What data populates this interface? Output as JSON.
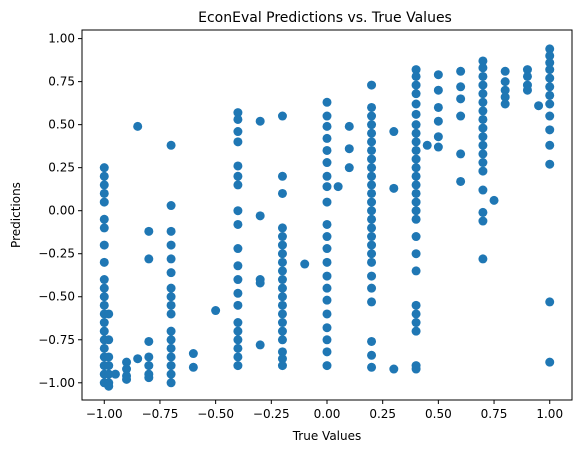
{
  "chart_data": {
    "type": "scatter",
    "title": "EconEval Predictions vs. True Values",
    "xlabel": "True Values",
    "ylabel": "Predictions",
    "xlim": [
      -1.1,
      1.1
    ],
    "ylim": [
      -1.1,
      1.05
    ],
    "xticks": [
      -1.0,
      -0.75,
      -0.5,
      -0.25,
      0.0,
      0.25,
      0.5,
      0.75,
      1.0
    ],
    "xtick_labels": [
      "−1.00",
      "−0.75",
      "−0.50",
      "−0.25",
      "0.00",
      "0.25",
      "0.50",
      "0.75",
      "1.00"
    ],
    "yticks": [
      -1.0,
      -0.75,
      -0.5,
      -0.25,
      0.0,
      0.25,
      0.5,
      0.75,
      1.0
    ],
    "ytick_labels": [
      "−1.00",
      "−0.75",
      "−0.50",
      "−0.25",
      "0.00",
      "0.25",
      "0.50",
      "0.75",
      "1.00"
    ],
    "grid": false,
    "marker_color": "#1f77b4",
    "points": [
      [
        -1.0,
        0.25
      ],
      [
        -1.0,
        0.2
      ],
      [
        -1.0,
        0.15
      ],
      [
        -1.0,
        0.1
      ],
      [
        -1.0,
        0.05
      ],
      [
        -1.0,
        -0.05
      ],
      [
        -1.0,
        -0.1
      ],
      [
        -1.0,
        -0.2
      ],
      [
        -1.0,
        -0.3
      ],
      [
        -1.0,
        -0.4
      ],
      [
        -1.0,
        -0.45
      ],
      [
        -1.0,
        -0.5
      ],
      [
        -1.0,
        -0.55
      ],
      [
        -1.0,
        -0.6
      ],
      [
        -1.0,
        -0.65
      ],
      [
        -1.0,
        -0.7
      ],
      [
        -1.0,
        -0.75
      ],
      [
        -1.0,
        -0.8
      ],
      [
        -1.0,
        -0.85
      ],
      [
        -1.0,
        -0.9
      ],
      [
        -1.0,
        -0.95
      ],
      [
        -1.0,
        -1.0
      ],
      [
        -0.98,
        -0.6
      ],
      [
        -0.98,
        -0.75
      ],
      [
        -0.98,
        -0.85
      ],
      [
        -0.98,
        -0.9
      ],
      [
        -0.98,
        -0.95
      ],
      [
        -0.98,
        -1.0
      ],
      [
        -0.98,
        -1.02
      ],
      [
        -0.95,
        -0.95
      ],
      [
        -0.9,
        -0.88
      ],
      [
        -0.9,
        -0.92
      ],
      [
        -0.9,
        -0.96
      ],
      [
        -0.9,
        -0.98
      ],
      [
        -0.85,
        0.49
      ],
      [
        -0.85,
        -0.86
      ],
      [
        -0.8,
        -0.12
      ],
      [
        -0.8,
        -0.28
      ],
      [
        -0.8,
        -0.76
      ],
      [
        -0.8,
        -0.85
      ],
      [
        -0.8,
        -0.9
      ],
      [
        -0.8,
        -0.95
      ],
      [
        -0.8,
        -0.97
      ],
      [
        -0.7,
        0.38
      ],
      [
        -0.7,
        0.03
      ],
      [
        -0.7,
        -0.12
      ],
      [
        -0.7,
        -0.2
      ],
      [
        -0.7,
        -0.28
      ],
      [
        -0.7,
        -0.36
      ],
      [
        -0.7,
        -0.45
      ],
      [
        -0.7,
        -0.5
      ],
      [
        -0.7,
        -0.55
      ],
      [
        -0.7,
        -0.6
      ],
      [
        -0.7,
        -0.7
      ],
      [
        -0.7,
        -0.75
      ],
      [
        -0.7,
        -0.8
      ],
      [
        -0.7,
        -0.85
      ],
      [
        -0.7,
        -0.9
      ],
      [
        -0.7,
        -0.95
      ],
      [
        -0.7,
        -1.0
      ],
      [
        -0.6,
        -0.83
      ],
      [
        -0.6,
        -0.91
      ],
      [
        -0.5,
        -0.58
      ],
      [
        -0.4,
        0.57
      ],
      [
        -0.4,
        0.53
      ],
      [
        -0.4,
        0.46
      ],
      [
        -0.4,
        0.4
      ],
      [
        -0.4,
        0.26
      ],
      [
        -0.4,
        0.2
      ],
      [
        -0.4,
        0.15
      ],
      [
        -0.4,
        0.0
      ],
      [
        -0.4,
        -0.08
      ],
      [
        -0.4,
        -0.22
      ],
      [
        -0.4,
        -0.32
      ],
      [
        -0.4,
        -0.4
      ],
      [
        -0.4,
        -0.48
      ],
      [
        -0.4,
        -0.55
      ],
      [
        -0.4,
        -0.65
      ],
      [
        -0.4,
        -0.7
      ],
      [
        -0.4,
        -0.75
      ],
      [
        -0.4,
        -0.8
      ],
      [
        -0.4,
        -0.85
      ],
      [
        -0.4,
        -0.9
      ],
      [
        -0.3,
        0.52
      ],
      [
        -0.3,
        -0.03
      ],
      [
        -0.3,
        -0.4
      ],
      [
        -0.3,
        -0.42
      ],
      [
        -0.3,
        -0.78
      ],
      [
        -0.2,
        0.55
      ],
      [
        -0.2,
        0.2
      ],
      [
        -0.2,
        0.1
      ],
      [
        -0.2,
        -0.1
      ],
      [
        -0.2,
        -0.15
      ],
      [
        -0.2,
        -0.2
      ],
      [
        -0.2,
        -0.25
      ],
      [
        -0.2,
        -0.3
      ],
      [
        -0.2,
        -0.35
      ],
      [
        -0.2,
        -0.4
      ],
      [
        -0.2,
        -0.45
      ],
      [
        -0.2,
        -0.5
      ],
      [
        -0.2,
        -0.55
      ],
      [
        -0.2,
        -0.6
      ],
      [
        -0.2,
        -0.65
      ],
      [
        -0.2,
        -0.7
      ],
      [
        -0.2,
        -0.75
      ],
      [
        -0.2,
        -0.82
      ],
      [
        -0.2,
        -0.86
      ],
      [
        -0.2,
        -0.9
      ],
      [
        -0.1,
        -0.31
      ],
      [
        0.0,
        0.63
      ],
      [
        0.0,
        0.55
      ],
      [
        0.0,
        0.49
      ],
      [
        0.0,
        0.42
      ],
      [
        0.0,
        0.35
      ],
      [
        0.0,
        0.28
      ],
      [
        0.0,
        0.2
      ],
      [
        0.0,
        0.14
      ],
      [
        0.0,
        0.05
      ],
      [
        0.0,
        -0.08
      ],
      [
        0.0,
        -0.15
      ],
      [
        0.0,
        -0.22
      ],
      [
        0.0,
        -0.3
      ],
      [
        0.0,
        -0.38
      ],
      [
        0.0,
        -0.45
      ],
      [
        0.0,
        -0.52
      ],
      [
        0.0,
        -0.6
      ],
      [
        0.0,
        -0.68
      ],
      [
        0.0,
        -0.75
      ],
      [
        0.0,
        -0.82
      ],
      [
        0.0,
        -0.9
      ],
      [
        0.05,
        0.14
      ],
      [
        0.1,
        0.49
      ],
      [
        0.1,
        0.36
      ],
      [
        0.1,
        0.25
      ],
      [
        0.2,
        0.73
      ],
      [
        0.2,
        0.6
      ],
      [
        0.2,
        0.55
      ],
      [
        0.2,
        0.5
      ],
      [
        0.2,
        0.45
      ],
      [
        0.2,
        0.4
      ],
      [
        0.2,
        0.35
      ],
      [
        0.2,
        0.3
      ],
      [
        0.2,
        0.25
      ],
      [
        0.2,
        0.2
      ],
      [
        0.2,
        0.15
      ],
      [
        0.2,
        0.1
      ],
      [
        0.2,
        0.05
      ],
      [
        0.2,
        0.0
      ],
      [
        0.2,
        -0.05
      ],
      [
        0.2,
        -0.1
      ],
      [
        0.2,
        -0.15
      ],
      [
        0.2,
        -0.2
      ],
      [
        0.2,
        -0.25
      ],
      [
        0.2,
        -0.3
      ],
      [
        0.2,
        -0.38
      ],
      [
        0.2,
        -0.45
      ],
      [
        0.2,
        -0.53
      ],
      [
        0.2,
        -0.76
      ],
      [
        0.2,
        -0.84
      ],
      [
        0.2,
        -0.91
      ],
      [
        0.3,
        0.46
      ],
      [
        0.3,
        0.13
      ],
      [
        0.3,
        -0.92
      ],
      [
        0.4,
        0.82
      ],
      [
        0.4,
        0.78
      ],
      [
        0.4,
        0.73
      ],
      [
        0.4,
        0.68
      ],
      [
        0.4,
        0.62
      ],
      [
        0.4,
        0.56
      ],
      [
        0.4,
        0.5
      ],
      [
        0.4,
        0.45
      ],
      [
        0.4,
        0.4
      ],
      [
        0.4,
        0.35
      ],
      [
        0.4,
        0.3
      ],
      [
        0.4,
        0.25
      ],
      [
        0.4,
        0.2
      ],
      [
        0.4,
        0.15
      ],
      [
        0.4,
        0.1
      ],
      [
        0.4,
        0.05
      ],
      [
        0.4,
        0.0
      ],
      [
        0.4,
        -0.05
      ],
      [
        0.4,
        -0.15
      ],
      [
        0.4,
        -0.25
      ],
      [
        0.4,
        -0.35
      ],
      [
        0.4,
        -0.55
      ],
      [
        0.4,
        -0.6
      ],
      [
        0.4,
        -0.65
      ],
      [
        0.4,
        -0.7
      ],
      [
        0.4,
        -0.9
      ],
      [
        0.4,
        -0.92
      ],
      [
        0.45,
        0.38
      ],
      [
        0.5,
        0.79
      ],
      [
        0.5,
        0.7
      ],
      [
        0.5,
        0.6
      ],
      [
        0.5,
        0.52
      ],
      [
        0.5,
        0.43
      ],
      [
        0.5,
        0.37
      ],
      [
        0.6,
        0.81
      ],
      [
        0.6,
        0.72
      ],
      [
        0.6,
        0.65
      ],
      [
        0.6,
        0.55
      ],
      [
        0.6,
        0.33
      ],
      [
        0.6,
        0.17
      ],
      [
        0.7,
        0.87
      ],
      [
        0.7,
        0.83
      ],
      [
        0.7,
        0.78
      ],
      [
        0.7,
        0.73
      ],
      [
        0.7,
        0.68
      ],
      [
        0.7,
        0.63
      ],
      [
        0.7,
        0.58
      ],
      [
        0.7,
        0.53
      ],
      [
        0.7,
        0.48
      ],
      [
        0.7,
        0.43
      ],
      [
        0.7,
        0.38
      ],
      [
        0.7,
        0.33
      ],
      [
        0.7,
        0.28
      ],
      [
        0.7,
        0.23
      ],
      [
        0.7,
        0.12
      ],
      [
        0.7,
        -0.01
      ],
      [
        0.7,
        -0.06
      ],
      [
        0.7,
        -0.28
      ],
      [
        0.75,
        0.06
      ],
      [
        0.8,
        0.81
      ],
      [
        0.8,
        0.75
      ],
      [
        0.8,
        0.7
      ],
      [
        0.8,
        0.66
      ],
      [
        0.8,
        0.62
      ],
      [
        0.9,
        0.82
      ],
      [
        0.9,
        0.78
      ],
      [
        0.9,
        0.73
      ],
      [
        0.9,
        0.7
      ],
      [
        0.95,
        0.61
      ],
      [
        1.0,
        0.94
      ],
      [
        1.0,
        0.9
      ],
      [
        1.0,
        0.86
      ],
      [
        1.0,
        0.82
      ],
      [
        1.0,
        0.77
      ],
      [
        1.0,
        0.72
      ],
      [
        1.0,
        0.67
      ],
      [
        1.0,
        0.62
      ],
      [
        1.0,
        0.55
      ],
      [
        1.0,
        0.47
      ],
      [
        1.0,
        0.38
      ],
      [
        1.0,
        0.27
      ],
      [
        1.0,
        -0.53
      ],
      [
        1.0,
        -0.88
      ]
    ]
  }
}
